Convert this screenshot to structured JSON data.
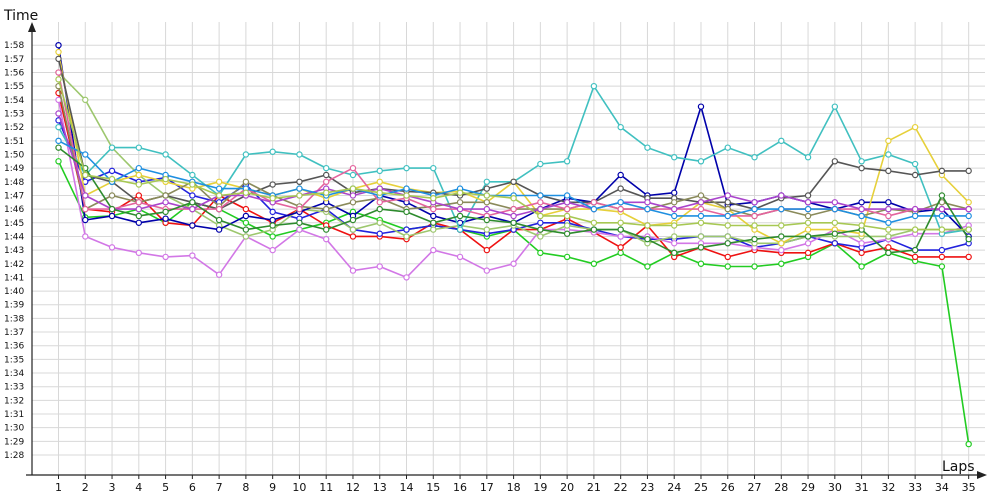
{
  "chart_data": {
    "type": "line",
    "title": "",
    "xlabel": "Laps",
    "ylabel": "Time",
    "x_ticks": [
      1,
      2,
      3,
      4,
      5,
      6,
      7,
      8,
      9,
      10,
      11,
      12,
      13,
      14,
      15,
      16,
      17,
      18,
      19,
      20,
      21,
      22,
      23,
      24,
      25,
      26,
      27,
      28,
      29,
      30,
      31,
      32,
      33,
      34,
      35
    ],
    "xlim": [
      0,
      36
    ],
    "ylim": [
      87,
      120
    ],
    "y_ticks": [
      {
        "value": 88,
        "label": "1:28"
      },
      {
        "value": 89,
        "label": "1:29"
      },
      {
        "value": 90,
        "label": "1:30"
      },
      {
        "value": 91,
        "label": "1:31"
      },
      {
        "value": 92,
        "label": "1:32"
      },
      {
        "value": 93,
        "label": "1:33"
      },
      {
        "value": 94,
        "label": "1:34"
      },
      {
        "value": 95,
        "label": "1:35"
      },
      {
        "value": 96,
        "label": "1:36"
      },
      {
        "value": 97,
        "label": "1:37"
      },
      {
        "value": 98,
        "label": "1:38"
      },
      {
        "value": 99,
        "label": "1:39"
      },
      {
        "value": 100,
        "label": "1:40"
      },
      {
        "value": 101,
        "label": "1:41"
      },
      {
        "value": 102,
        "label": "1:42"
      },
      {
        "value": 103,
        "label": "1:43"
      },
      {
        "value": 104,
        "label": "1:44"
      },
      {
        "value": 105,
        "label": "1:45"
      },
      {
        "value": 106,
        "label": "1:46"
      },
      {
        "value": 107,
        "label": "1:47"
      },
      {
        "value": 108,
        "label": "1:48"
      },
      {
        "value": 109,
        "label": "1:49"
      },
      {
        "value": 110,
        "label": "1:50"
      },
      {
        "value": 111,
        "label": "1:51"
      },
      {
        "value": 112,
        "label": "1:52"
      },
      {
        "value": 113,
        "label": "1:53"
      },
      {
        "value": 114,
        "label": "1:54"
      },
      {
        "value": 115,
        "label": "1:55"
      },
      {
        "value": 116,
        "label": "1:56"
      },
      {
        "value": 117,
        "label": "1:57"
      },
      {
        "value": 118,
        "label": "1:58"
      }
    ],
    "grid": true,
    "legend": "none",
    "series": [
      {
        "color": "#22cc22",
        "values": [
          109.5,
          105.4,
          105.5,
          106,
          105,
          106.5,
          106,
          105,
          104,
          104.5,
          105,
          105.8,
          105.2,
          104.5,
          104.8,
          104.5,
          104,
          104.5,
          102.8,
          102.5,
          102,
          102.8,
          101.8,
          102.8,
          102,
          101.8,
          101.8,
          102,
          102.5,
          103.5,
          101.8,
          102.8,
          102.2,
          101.8,
          88.8
        ]
      },
      {
        "color": "#ee1111",
        "values": [
          114.5,
          106,
          105.8,
          107,
          105,
          104.8,
          107,
          106,
          105,
          106,
          104.8,
          104,
          104,
          103.8,
          105,
          104.5,
          103,
          104.5,
          104.5,
          105.3,
          104.3,
          103.2,
          104.8,
          102.5,
          103.2,
          102.5,
          103,
          102.8,
          102.8,
          103.5,
          102.8,
          103.2,
          102.5,
          102.5,
          102.5
        ]
      },
      {
        "color": "#2222dd",
        "values": [
          112.5,
          108,
          108.8,
          108,
          108.3,
          107,
          106.5,
          107.8,
          105.8,
          105.3,
          106,
          104.5,
          104.2,
          104.5,
          104.8,
          104.5,
          104.2,
          104.5,
          105,
          105,
          104.5,
          104,
          103.8,
          103.8,
          104,
          104,
          103.2,
          103.5,
          104,
          103.5,
          103.2,
          103.8,
          103,
          103,
          103.5
        ]
      },
      {
        "color": "#d277e6",
        "values": [
          114,
          104,
          103.2,
          102.8,
          102.5,
          102.6,
          101.2,
          104,
          103,
          104.5,
          103.8,
          101.5,
          101.8,
          101,
          103,
          102.5,
          101.5,
          102,
          104.5,
          104.5,
          104.3,
          104,
          104,
          103.5,
          103.5,
          103.5,
          103.2,
          103,
          103.5,
          104.5,
          103.5,
          103.8,
          104.2,
          104.2,
          104.8
        ]
      },
      {
        "color": "#9dc76e",
        "values": [
          116,
          114,
          110.5,
          108.5,
          107,
          106,
          104.8,
          104,
          104.5,
          106,
          105.8,
          104.5,
          105,
          104,
          104.5,
          104.8,
          104.5,
          104.8,
          104,
          104.8,
          104.5,
          104.5,
          103.5,
          104,
          104,
          104,
          103.5,
          103.5,
          104,
          104,
          104,
          104,
          104.5,
          104.5,
          104.5
        ]
      },
      {
        "color": "#0000aa",
        "values": [
          118,
          105.2,
          105.5,
          105,
          105.3,
          104.8,
          104.5,
          105.5,
          105.2,
          105.8,
          106.5,
          105.5,
          107,
          106.5,
          105.5,
          105,
          105.5,
          105,
          106,
          106.8,
          106.5,
          108.5,
          107,
          107.2,
          113.5,
          106.3,
          106.5,
          107,
          106.5,
          106,
          106.5,
          106.5,
          105.8,
          106,
          104
        ]
      },
      {
        "color": "#40c0c0",
        "values": [
          112,
          108.5,
          110.5,
          110.5,
          110,
          108.5,
          107,
          110,
          110.2,
          110,
          109,
          108.5,
          108.8,
          109,
          109,
          104.5,
          108,
          108,
          109.3,
          109.5,
          115,
          112,
          110.5,
          109.8,
          109.5,
          110.5,
          109.8,
          111,
          109.8,
          113.5,
          109.5,
          110,
          109.3,
          104.2,
          104.5
        ]
      },
      {
        "color": "#e6d03a",
        "values": [
          117.5,
          107,
          108,
          108.5,
          108,
          107.5,
          108,
          107.5,
          107,
          107.5,
          106.8,
          107.5,
          108,
          107.5,
          107.2,
          107.3,
          106.5,
          108,
          105.5,
          106,
          106,
          105.8,
          104.8,
          105,
          106.5,
          106,
          104.5,
          103.5,
          104.5,
          104.5,
          104.2,
          111,
          112,
          108.5,
          106.5
        ]
      },
      {
        "color": "#555555",
        "values": [
          117,
          108.5,
          108,
          106.5,
          107,
          106.5,
          106,
          107,
          107.8,
          108,
          108.5,
          107.2,
          107.5,
          107.3,
          107.2,
          107,
          107.5,
          108,
          107,
          106.5,
          106.5,
          107.5,
          106.8,
          106.8,
          106.5,
          106.5,
          106,
          106.8,
          107,
          109.5,
          109,
          108.8,
          108.5,
          108.8,
          108.8
        ]
      },
      {
        "color": "#8a8a5a",
        "values": [
          115,
          106,
          107,
          106.5,
          107,
          108,
          106.2,
          108,
          107,
          106.2,
          106,
          106.5,
          106.8,
          106,
          106.2,
          106.5,
          106.5,
          106,
          106,
          106,
          106.5,
          106,
          106,
          106.5,
          107,
          106,
          105.5,
          106,
          105.5,
          106,
          105.5,
          106,
          105.8,
          106.5,
          106
        ]
      },
      {
        "color": "#e3639d",
        "values": [
          116,
          106,
          106,
          106.5,
          106,
          106,
          106,
          107.5,
          106.5,
          106,
          108,
          109,
          106.5,
          106.8,
          106,
          106,
          105.5,
          106,
          106.5,
          106,
          106.5,
          106,
          106,
          106,
          106,
          105.5,
          105.5,
          106,
          106,
          106,
          106,
          105.5,
          106,
          106,
          106
        ]
      },
      {
        "color": "#aa44cc",
        "values": [
          113,
          107,
          106,
          106,
          106.5,
          106,
          107,
          107,
          106.5,
          107,
          107.5,
          107,
          107.5,
          107,
          106.5,
          106,
          106,
          105.5,
          106,
          106.5,
          106,
          106.5,
          106.5,
          106,
          106.5,
          107,
          106.5,
          107,
          106.5,
          106.5,
          106,
          106,
          106,
          106,
          106
        ]
      },
      {
        "color": "#1e8fe0",
        "values": [
          111,
          110,
          108,
          109,
          108.5,
          108,
          107.5,
          107.5,
          107,
          107.5,
          107,
          107.5,
          107,
          107.5,
          107,
          107.5,
          107,
          107,
          107,
          107,
          106,
          106.5,
          106,
          105.5,
          105.5,
          105.5,
          106,
          106,
          106,
          106,
          105.5,
          105,
          105.5,
          105.5,
          105.5
        ]
      },
      {
        "color": "#2e8b2e",
        "values": [
          110.5,
          109,
          106,
          105.5,
          105.8,
          106.5,
          105.2,
          104.5,
          104.8,
          105,
          104.5,
          105.2,
          106,
          105.8,
          105,
          105.5,
          105.2,
          105,
          104.5,
          104.2,
          104.5,
          104.5,
          103.8,
          102.8,
          103.2,
          103.5,
          103.8,
          104,
          104,
          104.2,
          104.5,
          102.8,
          103,
          107,
          103.8
        ]
      },
      {
        "color": "#a7c853",
        "values": [
          115.5,
          108.5,
          108.2,
          107.8,
          108.2,
          107.8,
          107,
          107.2,
          106.8,
          107,
          107.2,
          107.5,
          107.2,
          107,
          106.8,
          107.2,
          107,
          106.8,
          105.5,
          105.5,
          105,
          105,
          104.8,
          104.8,
          105,
          104.8,
          104.8,
          104.8,
          105,
          105,
          104.8,
          104.5,
          104.5,
          104.5,
          104.5
        ]
      }
    ]
  },
  "page": {
    "ylabel": "Time",
    "xlabel": "Laps"
  }
}
